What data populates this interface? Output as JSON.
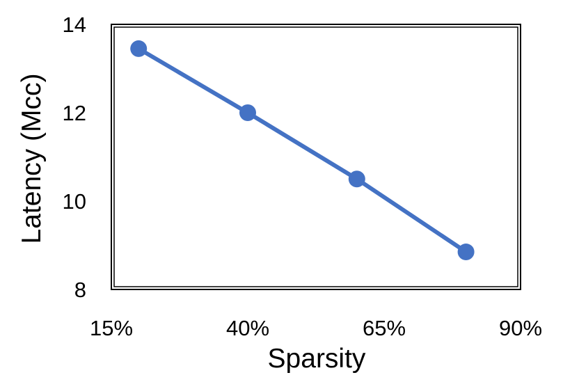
{
  "chart_data": {
    "type": "line",
    "title": "",
    "xlabel": "Sparsity",
    "ylabel": "Latency (Mcc)",
    "x_ticks": [
      "15%",
      "40%",
      "65%",
      "90%"
    ],
    "y_ticks": [
      "8",
      "10",
      "12",
      "14"
    ],
    "xlim": [
      15,
      90
    ],
    "ylim": [
      8,
      14
    ],
    "grid": false,
    "legend": "none",
    "series": [
      {
        "color": "#4472C4",
        "marker": "circle",
        "points": [
          {
            "x": 20,
            "y": 13.45
          },
          {
            "x": 40,
            "y": 12.0
          },
          {
            "x": 60,
            "y": 10.5
          },
          {
            "x": 80,
            "y": 8.85
          }
        ]
      }
    ]
  }
}
